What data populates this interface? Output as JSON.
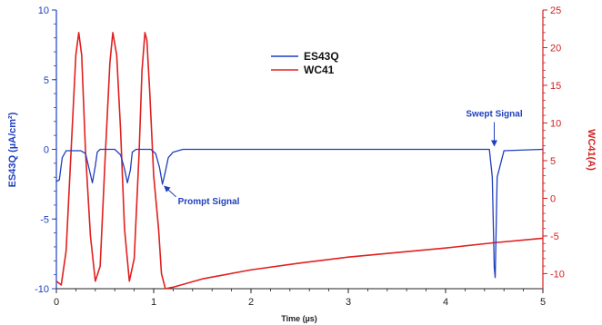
{
  "chart_data": {
    "type": "line",
    "xlabel": "Time (µs)",
    "ylabel_left": "ES43Q (µA/cm²)",
    "ylabel_right": "WC41(A)",
    "xlim": [
      0,
      5
    ],
    "ylim_left": [
      -10,
      10
    ],
    "ylim_right": [
      -12,
      25
    ],
    "x_ticks": [
      "0",
      "1",
      "2",
      "3",
      "4",
      "5"
    ],
    "y_left_ticks": [
      "10",
      "5",
      "0",
      "-5",
      "-10"
    ],
    "y_right_ticks": [
      "25",
      "20",
      "15",
      "10",
      "5",
      "0",
      "-5",
      "-10"
    ],
    "grid": false,
    "legend_position": "top-center",
    "colors": {
      "left_axis": "#1f3fbf",
      "right_axis": "#d42020",
      "es43q": "#1f3fbf",
      "wc41": "#e02020"
    },
    "series": [
      {
        "name": "ES43Q",
        "axis": "left",
        "color": "#1f3fbf",
        "x": [
          0.0,
          0.03,
          0.06,
          0.1,
          0.25,
          0.3,
          0.34,
          0.37,
          0.4,
          0.42,
          0.45,
          0.6,
          0.66,
          0.7,
          0.73,
          0.76,
          0.78,
          0.82,
          0.97,
          1.02,
          1.06,
          1.09,
          1.12,
          1.15,
          1.2,
          1.3,
          1.5,
          2.0,
          3.0,
          4.0,
          4.45,
          4.48,
          4.5,
          4.51,
          4.53,
          4.6,
          5.0
        ],
        "y": [
          -2.3,
          -2.2,
          -0.6,
          -0.1,
          -0.1,
          -0.3,
          -1.5,
          -2.4,
          -1.2,
          -0.2,
          0.0,
          0.0,
          -0.4,
          -1.4,
          -2.4,
          -1.5,
          -0.2,
          0.0,
          0.0,
          -0.3,
          -1.3,
          -2.5,
          -1.6,
          -0.6,
          -0.2,
          0.0,
          0.0,
          0.0,
          0.0,
          0.0,
          0.0,
          -2.0,
          -8.5,
          -9.2,
          -2.0,
          -0.1,
          0.0
        ]
      },
      {
        "name": "WC41",
        "axis": "right",
        "color": "#e02020",
        "x": [
          0.0,
          0.05,
          0.1,
          0.15,
          0.2,
          0.23,
          0.26,
          0.3,
          0.35,
          0.4,
          0.45,
          0.5,
          0.55,
          0.58,
          0.62,
          0.66,
          0.7,
          0.75,
          0.8,
          0.85,
          0.88,
          0.91,
          0.93,
          0.96,
          1.0,
          1.05,
          1.08,
          1.12,
          1.2,
          1.5,
          2.0,
          2.5,
          3.0,
          3.5,
          4.0,
          4.5,
          5.0
        ],
        "y": [
          -11.0,
          -11.5,
          -7.0,
          6.0,
          19.0,
          22.0,
          19.0,
          6.0,
          -5.0,
          -11.0,
          -9.0,
          5.0,
          18.0,
          22.0,
          19.0,
          9.0,
          -4.0,
          -11.0,
          -8.0,
          6.0,
          17.0,
          22.0,
          21.0,
          14.0,
          3.0,
          -4.0,
          -10.0,
          -12.0,
          -11.8,
          -10.7,
          -9.5,
          -8.6,
          -7.8,
          -7.2,
          -6.6,
          -5.9,
          -5.3
        ]
      }
    ],
    "annotations": [
      {
        "text": "Prompt Signal",
        "x": 1.09,
        "y": -2.5,
        "axis": "left"
      },
      {
        "text": "Swept Signal",
        "x": 4.5,
        "y": 0.0,
        "axis": "left"
      }
    ]
  }
}
